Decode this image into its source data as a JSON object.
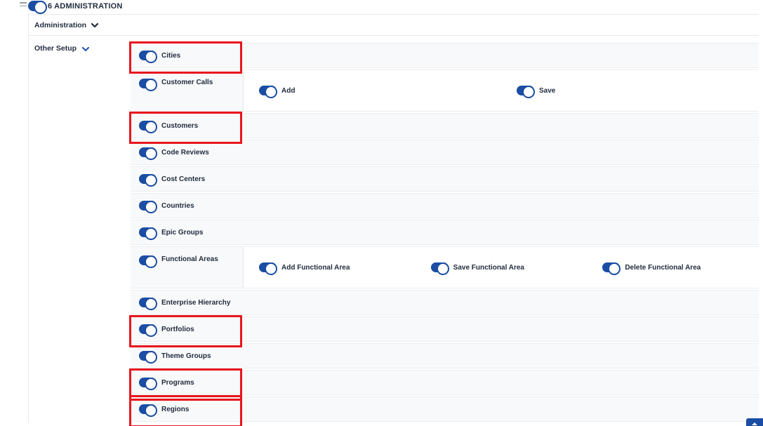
{
  "colors": {
    "toggle_blue": "#1a4da3",
    "highlight_red": "#e8161d",
    "text": "#1f2b3d"
  },
  "header": {
    "title": "6 ADMINISTRATION",
    "toggle_on": true,
    "menu_icon": "collapse-menu-icon"
  },
  "sections": {
    "administration": {
      "label": "Administration",
      "chevron_icon": "chevron-down-icon",
      "expanded": true
    },
    "other_setup": {
      "label": "Other Setup",
      "chevron_icon": "chevron-down-icon",
      "expanded": true
    }
  },
  "permissions": {
    "rows": [
      {
        "label": "Cities",
        "on": true,
        "highlighted": true
      },
      {
        "label": "Customer Calls",
        "on": true,
        "highlighted": false,
        "children": [
          {
            "label": "Add",
            "on": true
          },
          {
            "label": "Save",
            "on": true
          }
        ]
      },
      {
        "label": "Customers",
        "on": true,
        "highlighted": true
      },
      {
        "label": "Code Reviews",
        "on": true,
        "highlighted": false
      },
      {
        "label": "Cost Centers",
        "on": true,
        "highlighted": false
      },
      {
        "label": "Countries",
        "on": true,
        "highlighted": false
      },
      {
        "label": "Epic Groups",
        "on": true,
        "highlighted": false
      },
      {
        "label": "Functional Areas",
        "on": true,
        "highlighted": false,
        "children": [
          {
            "label": "Add Functional Area",
            "on": true
          },
          {
            "label": "Save Functional Area",
            "on": true
          },
          {
            "label": "Delete Functional Area",
            "on": true
          }
        ]
      },
      {
        "label": "Enterprise Hierarchy",
        "on": true,
        "highlighted": false
      },
      {
        "label": "Portfolios",
        "on": true,
        "highlighted": true
      },
      {
        "label": "Theme Groups",
        "on": true,
        "highlighted": false
      },
      {
        "label": "Programs",
        "on": true,
        "highlighted": true
      },
      {
        "label": "Regions",
        "on": true,
        "highlighted": true
      }
    ]
  },
  "floating_button": {
    "icon": "scroll-top-icon"
  }
}
